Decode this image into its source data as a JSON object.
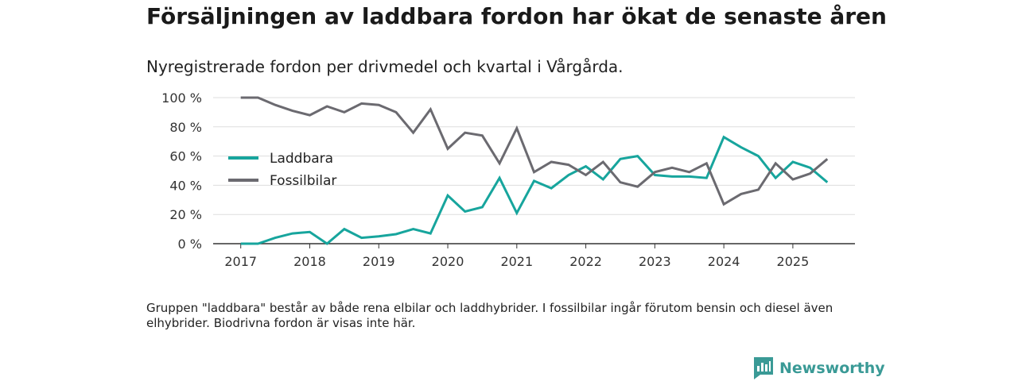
{
  "chart_data": {
    "type": "line",
    "title": "Försäljningen av laddbara fordon har ökat de senaste åren",
    "subtitle": "Nyregistrerade fordon per drivmedel och kvartal i Vårgårda.",
    "note": "Gruppen \"laddbara\" består av både rena elbilar och laddhybrider. I fossilbilar ingår förutom bensin och diesel även elhybrider. Biodrivna fordon är visas inte här.",
    "xlabel": "",
    "ylabel": "",
    "x_ticks": [
      "2017",
      "2018",
      "2019",
      "2020",
      "2021",
      "2022",
      "2023",
      "2024",
      "2025"
    ],
    "y_ticks": [
      "0 %",
      "20 %",
      "40 %",
      "60 %",
      "80 %",
      "100 %"
    ],
    "ylim": [
      0,
      100
    ],
    "xlim": [
      2016.6,
      2025.9
    ],
    "grid": true,
    "legend_position": "left",
    "x": [
      2017.0,
      2017.25,
      2017.5,
      2017.75,
      2018.0,
      2018.25,
      2018.5,
      2018.75,
      2019.0,
      2019.25,
      2019.5,
      2019.75,
      2020.0,
      2020.25,
      2020.5,
      2020.75,
      2021.0,
      2021.25,
      2021.5,
      2021.75,
      2022.0,
      2022.25,
      2022.5,
      2022.75,
      2023.0,
      2023.25,
      2023.5,
      2023.75,
      2024.0,
      2024.25,
      2024.5,
      2024.75,
      2025.0,
      2025.25,
      2025.5
    ],
    "series": [
      {
        "name": "Laddbara",
        "color": "#17a59d",
        "values": [
          0,
          0,
          4,
          7,
          8,
          0,
          10,
          4,
          5,
          6.5,
          10,
          7,
          33,
          22,
          25,
          45,
          21,
          43,
          38,
          47,
          53,
          44,
          58,
          60,
          47,
          46,
          46,
          45,
          73,
          66,
          60,
          45,
          56,
          52,
          42
        ]
      },
      {
        "name": "Fossilbilar",
        "color": "#6b6a70",
        "values": [
          100,
          100,
          95,
          91,
          88,
          94,
          90,
          96,
          95,
          90,
          76,
          92,
          65,
          76,
          74,
          55,
          79,
          49,
          56,
          54,
          47,
          56,
          42,
          39,
          49,
          52,
          49,
          55,
          27,
          34,
          37,
          55,
          44,
          48,
          58
        ]
      }
    ]
  },
  "branding": {
    "name": "Newsworthy",
    "icon": "bar-chart-logo-icon",
    "color": "#3a9a96"
  }
}
